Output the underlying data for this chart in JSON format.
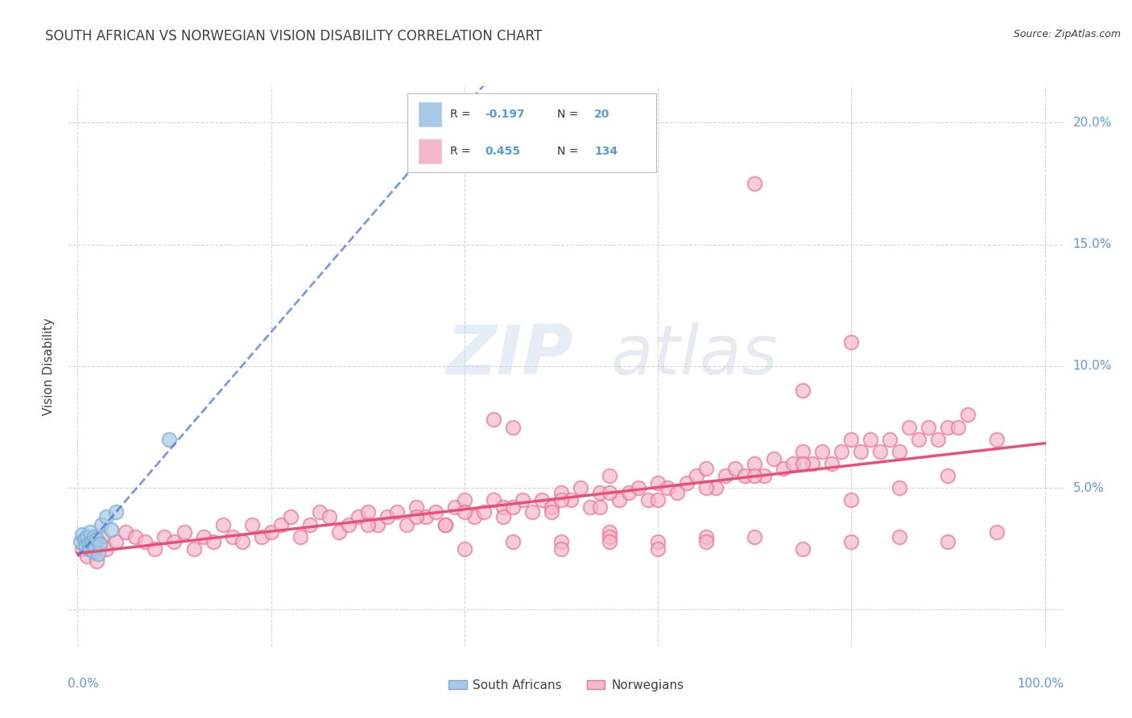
{
  "title": "SOUTH AFRICAN VS NORWEGIAN VISION DISABILITY CORRELATION CHART",
  "source": "Source: ZipAtlas.com",
  "ylabel": "Vision Disability",
  "watermark_zip": "ZIP",
  "watermark_atlas": "atlas",
  "sa_color": "#a8c8e8",
  "sa_edge": "#7aadd4",
  "no_color": "#f4b8ca",
  "no_edge": "#e87898",
  "sa_line_color": "#4472c4",
  "no_line_color": "#e8507a",
  "grid_color": "#cccccc",
  "title_color": "#404040",
  "axis_color": "#5b9bd5",
  "background_color": "#ffffff",
  "xlim": [
    -1,
    102
  ],
  "ylim": [
    -1.5,
    21.5
  ],
  "yticks": [
    0,
    5,
    10,
    15,
    20
  ],
  "xtick_positions": [
    0,
    20,
    40,
    60,
    80,
    100
  ],
  "sa_points_x": [
    0.3,
    0.5,
    0.7,
    0.8,
    1.0,
    1.1,
    1.2,
    1.3,
    1.5,
    1.6,
    1.7,
    1.8,
    2.0,
    2.1,
    2.3,
    2.5,
    3.0,
    3.5,
    4.0,
    9.5
  ],
  "sa_points_y": [
    2.8,
    3.1,
    2.9,
    2.6,
    3.0,
    2.7,
    2.5,
    3.2,
    2.8,
    2.4,
    3.0,
    2.6,
    2.9,
    2.3,
    2.7,
    3.5,
    3.8,
    3.3,
    4.0,
    7.0
  ],
  "no_points_x": [
    0.5,
    1.0,
    1.5,
    2.0,
    2.5,
    3.0,
    4.0,
    5.0,
    6.0,
    7.0,
    8.0,
    9.0,
    10.0,
    11.0,
    12.0,
    13.0,
    14.0,
    15.0,
    16.0,
    17.0,
    18.0,
    19.0,
    20.0,
    21.0,
    22.0,
    23.0,
    24.0,
    25.0,
    26.0,
    27.0,
    28.0,
    29.0,
    30.0,
    31.0,
    32.0,
    33.0,
    34.0,
    35.0,
    36.0,
    37.0,
    38.0,
    39.0,
    40.0,
    41.0,
    42.0,
    43.0,
    44.0,
    45.0,
    46.0,
    47.0,
    48.0,
    49.0,
    50.0,
    51.0,
    52.0,
    53.0,
    54.0,
    55.0,
    56.0,
    57.0,
    58.0,
    59.0,
    60.0,
    61.0,
    62.0,
    63.0,
    64.0,
    65.0,
    66.0,
    67.0,
    68.0,
    69.0,
    70.0,
    71.0,
    72.0,
    73.0,
    74.0,
    75.0,
    76.0,
    77.0,
    78.0,
    79.0,
    80.0,
    81.0,
    82.0,
    83.0,
    84.0,
    85.0,
    86.0,
    87.0,
    88.0,
    89.0,
    90.0,
    91.0,
    92.0,
    43.0,
    50.0,
    55.0,
    38.0,
    44.0,
    49.0,
    54.0,
    60.0,
    65.0,
    70.0,
    75.0,
    80.0,
    85.0,
    90.0,
    95.0,
    55.0,
    60.0,
    65.0,
    70.0,
    75.0,
    80.0,
    40.0,
    45.0,
    50.0,
    55.0,
    60.0,
    65.0,
    70.0,
    75.0,
    80.0,
    85.0,
    90.0,
    95.0,
    30.0,
    35.0,
    40.0,
    45.0,
    50.0,
    55.0
  ],
  "no_points_y": [
    2.5,
    2.2,
    2.8,
    2.0,
    3.0,
    2.5,
    2.8,
    3.2,
    3.0,
    2.8,
    2.5,
    3.0,
    2.8,
    3.2,
    2.5,
    3.0,
    2.8,
    3.5,
    3.0,
    2.8,
    3.5,
    3.0,
    3.2,
    3.5,
    3.8,
    3.0,
    3.5,
    4.0,
    3.8,
    3.2,
    3.5,
    3.8,
    4.0,
    3.5,
    3.8,
    4.0,
    3.5,
    4.2,
    3.8,
    4.0,
    3.5,
    4.2,
    4.5,
    3.8,
    4.0,
    4.5,
    4.2,
    7.5,
    4.5,
    4.0,
    4.5,
    4.2,
    4.8,
    4.5,
    5.0,
    4.2,
    4.8,
    5.5,
    4.5,
    4.8,
    5.0,
    4.5,
    5.2,
    5.0,
    4.8,
    5.2,
    5.5,
    5.8,
    5.0,
    5.5,
    5.8,
    5.5,
    6.0,
    5.5,
    6.2,
    5.8,
    6.0,
    6.5,
    6.0,
    6.5,
    6.0,
    6.5,
    7.0,
    6.5,
    7.0,
    6.5,
    7.0,
    6.5,
    7.5,
    7.0,
    7.5,
    7.0,
    7.5,
    7.5,
    8.0,
    7.8,
    2.8,
    3.2,
    3.5,
    3.8,
    4.0,
    4.2,
    4.5,
    5.0,
    5.5,
    6.0,
    4.5,
    5.0,
    5.5,
    7.0,
    3.0,
    2.8,
    3.0,
    17.5,
    9.0,
    11.0,
    2.5,
    2.8,
    2.5,
    2.8,
    2.5,
    2.8,
    3.0,
    2.5,
    2.8,
    3.0,
    2.8,
    3.2,
    3.5,
    3.8,
    4.0,
    4.2,
    4.5,
    4.8
  ]
}
